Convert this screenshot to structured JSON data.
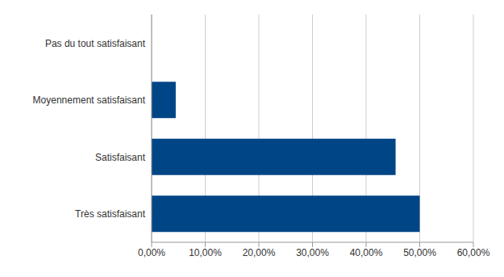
{
  "chart_data": {
    "type": "bar",
    "orientation": "horizontal",
    "categories": [
      "Pas du tout satisfaisant",
      "Moyennement satisfaisant",
      "Satisfaisant",
      "Très satisfaisant"
    ],
    "values": [
      0,
      4.5,
      45.5,
      50
    ],
    "color": "#004586",
    "xlim": [
      0,
      60
    ],
    "xticks": [
      {
        "value": 0,
        "label": "0,00%"
      },
      {
        "value": 10,
        "label": "10,00%"
      },
      {
        "value": 20,
        "label": "20,00%"
      },
      {
        "value": 30,
        "label": "30,00%"
      },
      {
        "value": 40,
        "label": "40,00%"
      },
      {
        "value": 50,
        "label": "50,00%"
      },
      {
        "value": 60,
        "label": "60,00%"
      }
    ],
    "grid": true
  }
}
